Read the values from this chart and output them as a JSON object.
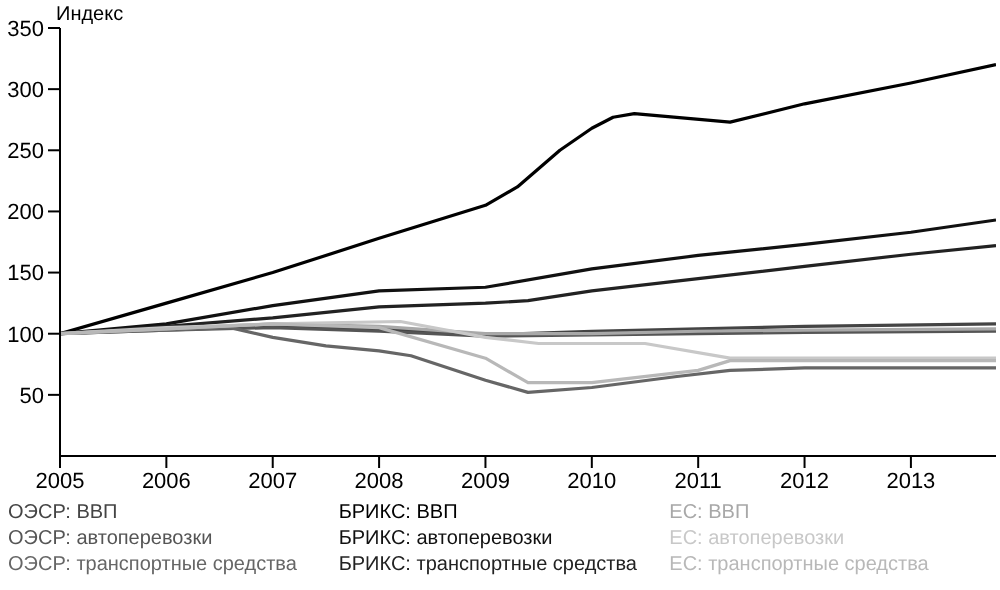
{
  "chart_data": {
    "type": "line",
    "ylabel": "Индекс",
    "xlim": [
      2005,
      2013.8
    ],
    "xticks": [
      2005,
      2006,
      2007,
      2008,
      2009,
      2010,
      2011,
      2012,
      2013
    ],
    "ylim": [
      0,
      350
    ],
    "yticks": [
      50,
      100,
      150,
      200,
      250,
      300,
      350
    ],
    "grid": false,
    "legend": "bottom",
    "marker": "none",
    "line_style": "solid",
    "series": [
      {
        "name": "ОЭСР: ВВП",
        "color": "#444444",
        "x": [
          2005,
          2006,
          2007,
          2008,
          2009,
          2010,
          2011,
          2012,
          2013.8
        ],
        "values": [
          100,
          104,
          106,
          104,
          99,
          102,
          104,
          106,
          108
        ]
      },
      {
        "name": "ОЭСР: автоперевозки",
        "color": "#555555",
        "x": [
          2005,
          2006,
          2007,
          2008,
          2009,
          2010,
          2011,
          2012,
          2013.8
        ],
        "values": [
          100,
          103,
          105,
          102,
          98,
          99,
          100,
          101,
          102
        ]
      },
      {
        "name": "ОЭСР: транспортные средства",
        "color": "#666666",
        "x": [
          2005,
          2006,
          2006.6,
          2007,
          2007.5,
          2008,
          2008.3,
          2009,
          2009.4,
          2010,
          2010.8,
          2011.3,
          2012,
          2013.8
        ],
        "values": [
          100,
          103,
          105,
          97,
          90,
          86,
          82,
          62,
          52,
          56,
          65,
          70,
          72,
          72
        ]
      },
      {
        "name": "БРИКС: ВВП",
        "color": "#000000",
        "x": [
          2005,
          2006,
          2007,
          2008,
          2009,
          2009.3,
          2009.7,
          2010,
          2010.2,
          2010.4,
          2011.3,
          2012,
          2013,
          2013.8
        ],
        "values": [
          100,
          125,
          150,
          178,
          205,
          220,
          250,
          268,
          277,
          280,
          273,
          288,
          305,
          320
        ]
      },
      {
        "name": "БРИКС: автоперевозки",
        "color": "#111111",
        "x": [
          2005,
          2006,
          2007,
          2008,
          2009,
          2010,
          2011,
          2012,
          2013,
          2013.8
        ],
        "values": [
          100,
          108,
          123,
          135,
          138,
          153,
          164,
          173,
          183,
          193
        ]
      },
      {
        "name": "БРИКС: транспортные средства",
        "color": "#222222",
        "x": [
          2005,
          2006,
          2007,
          2008,
          2009,
          2009.4,
          2010,
          2011,
          2012,
          2013,
          2013.8
        ],
        "values": [
          100,
          106,
          113,
          122,
          125,
          127,
          135,
          145,
          155,
          165,
          172
        ]
      },
      {
        "name": "ЕС: ВВП",
        "color": "#a8a8a8",
        "x": [
          2005,
          2006,
          2007,
          2008,
          2009,
          2010,
          2011,
          2012,
          2013.8
        ],
        "values": [
          100,
          104,
          108,
          106,
          100,
          100,
          102,
          103,
          104
        ]
      },
      {
        "name": "ЕС: автоперевозки",
        "color": "#c8c8c8",
        "x": [
          2005,
          2006,
          2007,
          2008.2,
          2009,
          2009.5,
          2010.5,
          2011.3,
          2012,
          2013.8
        ],
        "values": [
          100,
          105,
          108,
          110,
          97,
          92,
          92,
          80,
          80,
          80
        ]
      },
      {
        "name": "ЕС: транспортные средства",
        "color": "#b8b8b8",
        "x": [
          2005,
          2006,
          2007,
          2008,
          2009,
          2009.4,
          2010,
          2011,
          2011.3,
          2012,
          2013.8
        ],
        "values": [
          100,
          104,
          108,
          105,
          80,
          60,
          60,
          70,
          78,
          78,
          78
        ]
      }
    ]
  }
}
